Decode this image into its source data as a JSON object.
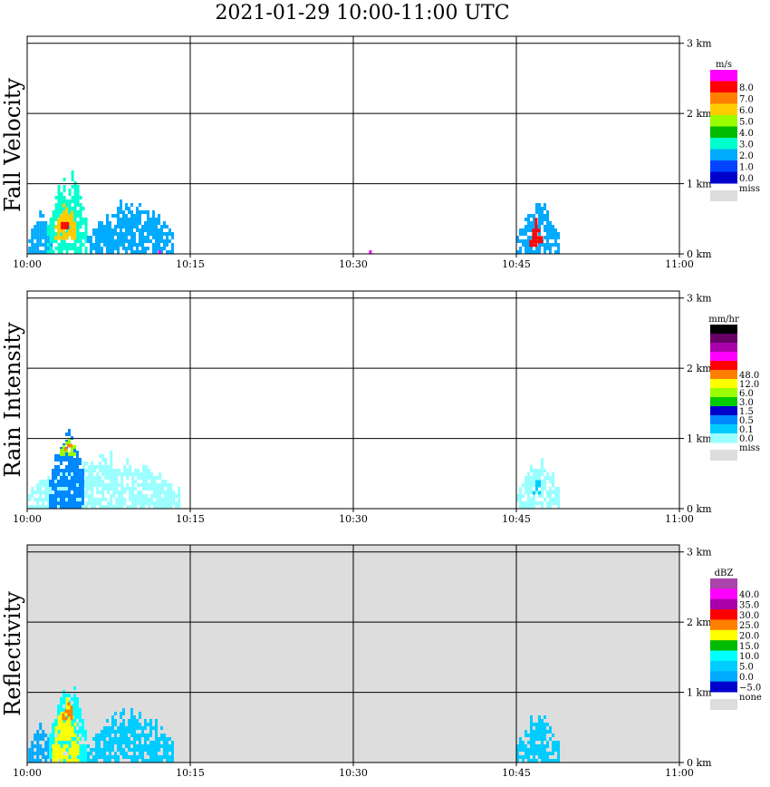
{
  "title": "2021-01-29   10:00-11:00 UTC",
  "time_ticks": [
    "10:00",
    "10:15",
    "10:30",
    "10:45",
    "11:00"
  ],
  "height_ticks": [
    "0 km",
    "1 km",
    "2 km",
    "3 km"
  ],
  "chart_data": [
    {
      "type": "heatmap",
      "panel": "fall-velocity",
      "ylabel": "Fall Velocity",
      "xlim": [
        "10:00",
        "11:00"
      ],
      "ylim_km": [
        0,
        3.1
      ],
      "background": "#ffffff",
      "colorbar": {
        "unit": "m/s",
        "labels": [
          "8.0",
          "7.0",
          "6.0",
          "5.0",
          "4.0",
          "3.0",
          "2.0",
          "1.0",
          "0.0"
        ],
        "colors": [
          "#ff00ff",
          "#ff0000",
          "#ff8000",
          "#ffcc00",
          "#99ff00",
          "#00bb00",
          "#00ffcc",
          "#00aaff",
          "#0044ff",
          "#0000cc"
        ],
        "miss_label": "miss",
        "miss_color": "#dddddd"
      },
      "echoes": [
        {
          "t_min": 0.1,
          "t_max": 2.2,
          "base_km": 0.0,
          "top_km": 0.7,
          "level": 2
        },
        {
          "t_min": 1.8,
          "t_max": 5.5,
          "base_km": 0.0,
          "top_km": 1.25,
          "level": 3
        },
        {
          "t_min": 2.5,
          "t_max": 4.5,
          "base_km": 0.2,
          "top_km": 0.85,
          "level": 6
        },
        {
          "t_min": 3.1,
          "t_max": 3.8,
          "base_km": 0.35,
          "top_km": 0.65,
          "level": 8
        },
        {
          "t_min": 5.5,
          "t_max": 13.5,
          "base_km": 0.0,
          "top_km": 0.85,
          "level": 2
        },
        {
          "t_min": 11.8,
          "t_max": 12.6,
          "base_km": 0.0,
          "top_km": 0.08,
          "level": 9
        },
        {
          "t_min": 31.2,
          "t_max": 31.5,
          "base_km": 0.0,
          "top_km": 0.12,
          "level": 9
        },
        {
          "t_min": 45.0,
          "t_max": 49.0,
          "base_km": 0.0,
          "top_km": 0.8,
          "level": 2
        },
        {
          "t_min": 46.2,
          "t_max": 47.2,
          "base_km": 0.1,
          "top_km": 0.55,
          "level": 8
        }
      ]
    },
    {
      "type": "heatmap",
      "panel": "rain-intensity",
      "ylabel": "Rain Intensity",
      "xlim": [
        "10:00",
        "11:00"
      ],
      "ylim_km": [
        0,
        3.1
      ],
      "background": "#ffffff",
      "colorbar": {
        "unit": "mm/hr",
        "labels": [
          "48.0",
          "12.0",
          "6.0",
          "3.0",
          "1.5",
          "0.5",
          "0.1",
          "0.0"
        ],
        "colors": [
          "#000000",
          "#660066",
          "#aa00aa",
          "#ff00ff",
          "#ff0000",
          "#ff8000",
          "#ffff00",
          "#99ff00",
          "#00cc00",
          "#0000cc",
          "#0088ff",
          "#00ccff",
          "#99ffff"
        ],
        "miss_label": "miss",
        "miss_color": "#dddddd"
      },
      "echoes": [
        {
          "t_min": 0.1,
          "t_max": 14.0,
          "base_km": 0.0,
          "top_km": 0.85,
          "level": 0
        },
        {
          "t_min": 2.0,
          "t_max": 5.2,
          "base_km": 0.0,
          "top_km": 1.25,
          "level": 2
        },
        {
          "t_min": 3.0,
          "t_max": 4.5,
          "base_km": 0.75,
          "top_km": 1.05,
          "level": 5
        },
        {
          "t_min": 3.4,
          "t_max": 4.1,
          "base_km": 0.82,
          "top_km": 0.98,
          "level": 7
        },
        {
          "t_min": 45.0,
          "t_max": 49.0,
          "base_km": 0.0,
          "top_km": 0.75,
          "level": 0
        },
        {
          "t_min": 46.5,
          "t_max": 47.2,
          "base_km": 0.2,
          "top_km": 0.45,
          "level": 1
        }
      ]
    },
    {
      "type": "heatmap",
      "panel": "reflectivity",
      "ylabel": "Reflectivity",
      "xlim": [
        "10:00",
        "11:00"
      ],
      "ylim_km": [
        0,
        3.1
      ],
      "background": "#dddddd",
      "colorbar": {
        "unit": "dBZ",
        "labels": [
          "40.0",
          "35.0",
          "30.0",
          "25.0",
          "20.0",
          "15.0",
          "10.0",
          "5.0",
          "0.0",
          "−5.0"
        ],
        "colors": [
          "#aa44aa",
          "#ff00ff",
          "#aa00aa",
          "#ff0000",
          "#ff8000",
          "#ffff00",
          "#00bb00",
          "#00ffff",
          "#00ccff",
          "#00aaff",
          "#0000cc"
        ],
        "miss_label": "none",
        "miss_color": "#dddddd"
      },
      "echoes": [
        {
          "t_min": 0.1,
          "t_max": 2.2,
          "base_km": 0.0,
          "top_km": 0.7,
          "level": 1
        },
        {
          "t_min": 2.0,
          "t_max": 5.3,
          "base_km": 0.0,
          "top_km": 1.25,
          "level": 3
        },
        {
          "t_min": 2.3,
          "t_max": 4.7,
          "base_km": 0.0,
          "top_km": 1.0,
          "level": 5
        },
        {
          "t_min": 3.2,
          "t_max": 4.2,
          "base_km": 0.6,
          "top_km": 0.92,
          "level": 6
        },
        {
          "t_min": 5.5,
          "t_max": 13.5,
          "base_km": 0.0,
          "top_km": 0.85,
          "level": 2
        },
        {
          "t_min": 45.0,
          "t_max": 49.0,
          "base_km": 0.0,
          "top_km": 0.8,
          "level": 2
        }
      ]
    }
  ]
}
